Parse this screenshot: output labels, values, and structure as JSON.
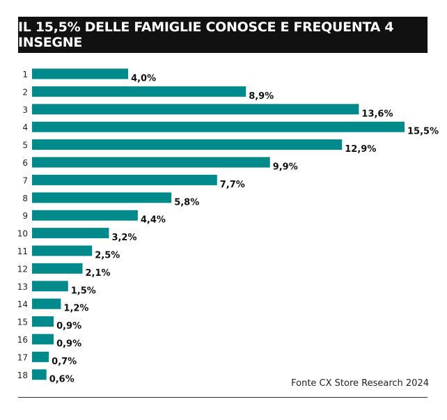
{
  "chart_data": {
    "type": "bar",
    "orientation": "horizontal",
    "title": "IL 15,5% DELLE FAMIGLIE CONOSCE E FREQUENTA 4 INSEGNE",
    "categories": [
      "1",
      "2",
      "3",
      "4",
      "5",
      "6",
      "7",
      "8",
      "9",
      "10",
      "11",
      "12",
      "13",
      "14",
      "15",
      "16",
      "17",
      "18"
    ],
    "values": [
      4.0,
      8.9,
      13.6,
      15.5,
      12.9,
      9.9,
      7.7,
      5.8,
      4.4,
      3.2,
      2.5,
      2.1,
      1.5,
      1.2,
      0.9,
      0.9,
      0.7,
      0.6
    ],
    "labels": [
      "4,0%",
      "8,9%",
      "13,6%",
      "15,5%",
      "12,9%",
      "9,9%",
      "7,7%",
      "5,8%",
      "4,4%",
      "3,2%",
      "2,5%",
      "2,1%",
      "1,5%",
      "1,2%",
      "0,9%",
      "0,9%",
      "0,7%",
      "0,6%"
    ],
    "color": "#008a8c",
    "source": "Fonte CX Store Research 2024"
  }
}
